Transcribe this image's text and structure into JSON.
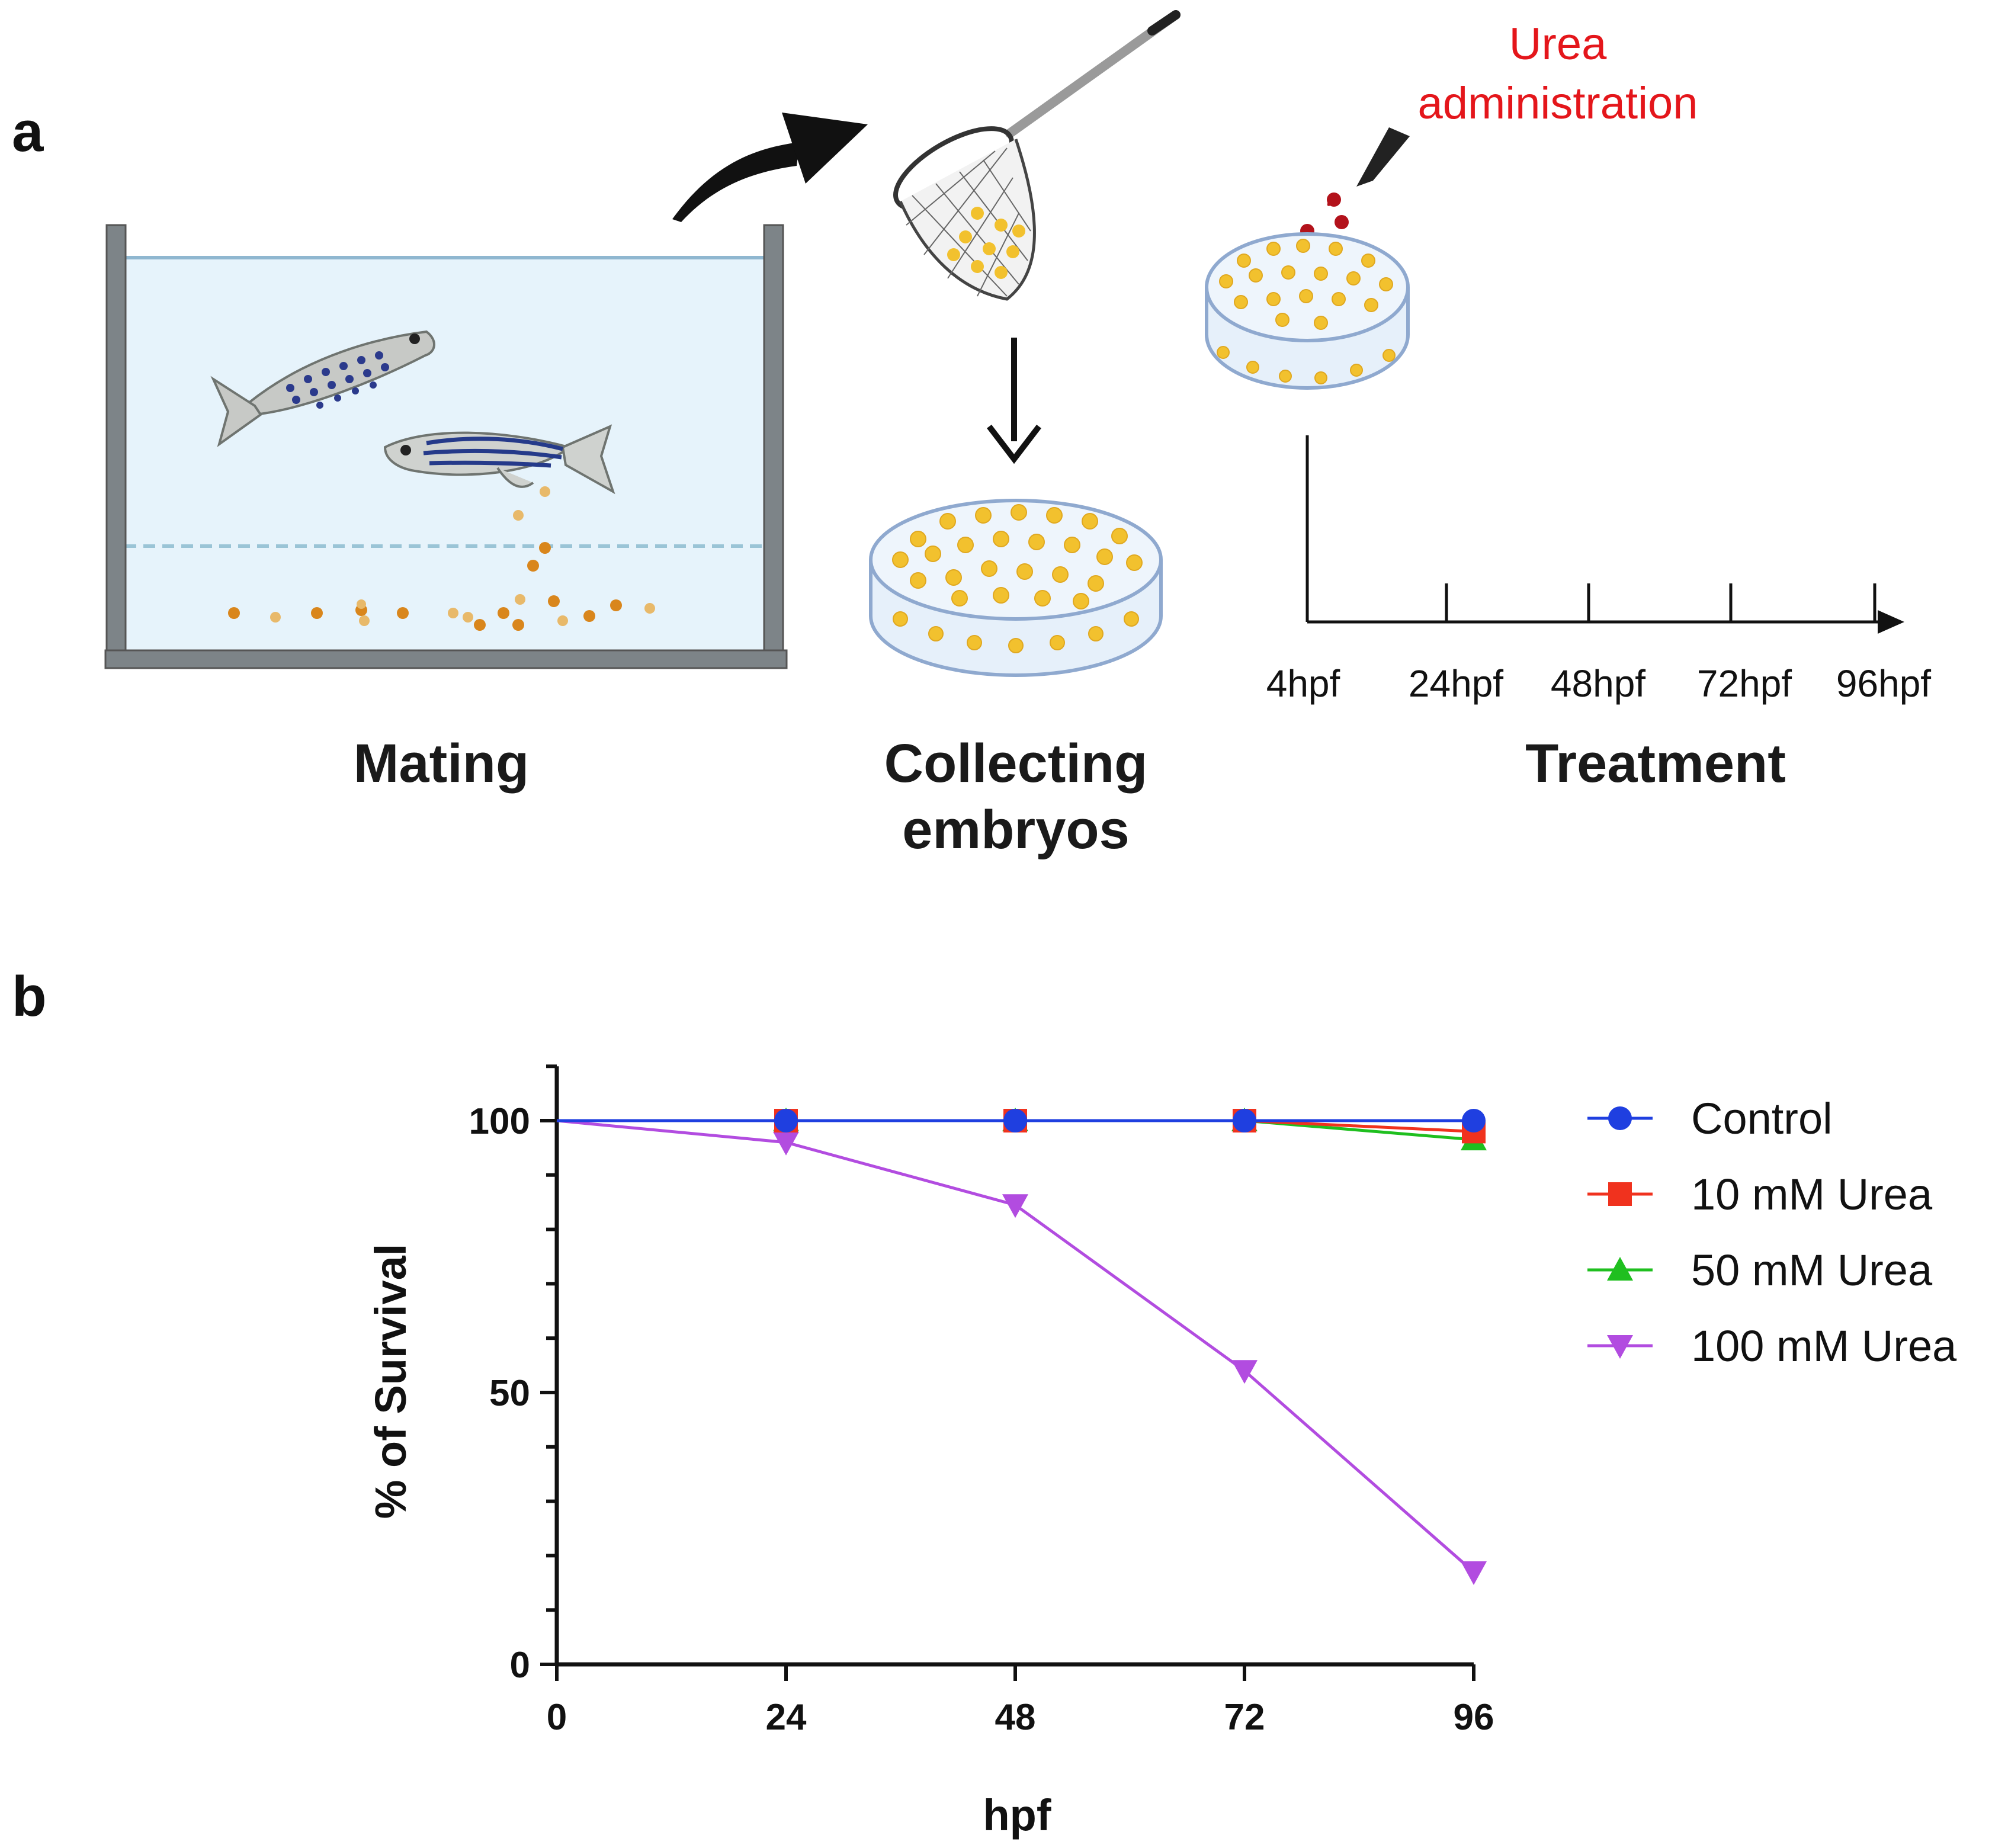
{
  "panel_a": {
    "letter": "a",
    "labels": {
      "mating": "Mating",
      "collecting_line1": "Collecting",
      "collecting_line2": "embryos",
      "treatment": "Treatment",
      "urea_line1": "Urea",
      "urea_line2": "administration"
    },
    "timeline": [
      "4hpf",
      "24hpf",
      "48hpf",
      "72hpf",
      "96hpf"
    ],
    "colors": {
      "water": "#e6f3fb",
      "tank_wall": "#7d8488",
      "embryo": "#f2c12e",
      "egg_orange": "#d9861c",
      "urea_drop": "#b3121b",
      "dish_rim": "#8fa9cf"
    }
  },
  "panel_b": {
    "letter": "b",
    "chart_data": {
      "type": "line",
      "xlabel": "hpf",
      "ylabel": "% of Survival",
      "x": [
        0,
        24,
        48,
        72,
        96
      ],
      "x_ticks": [
        "0",
        "24",
        "48",
        "72",
        "96"
      ],
      "y_ticks": [
        "0",
        "50",
        "100"
      ],
      "xlim": [
        0,
        96
      ],
      "ylim": [
        0,
        110
      ],
      "legend_position": "right",
      "grid": false,
      "series": [
        {
          "name": "Control",
          "values": [
            100,
            100,
            100,
            100,
            100
          ],
          "color": "#1f3fe0",
          "marker": "circle"
        },
        {
          "name": "10 mM Urea",
          "values": [
            100,
            100,
            100,
            100,
            98
          ],
          "color": "#f0321e",
          "marker": "square"
        },
        {
          "name": "50 mM Urea",
          "values": [
            100,
            100,
            100,
            100,
            96.5
          ],
          "color": "#1fbf1f",
          "marker": "triangle-up"
        },
        {
          "name": "100 mM Urea",
          "values": [
            100,
            96,
            84.5,
            54,
            17
          ],
          "color": "#b24ce0",
          "marker": "triangle-down"
        }
      ]
    }
  }
}
